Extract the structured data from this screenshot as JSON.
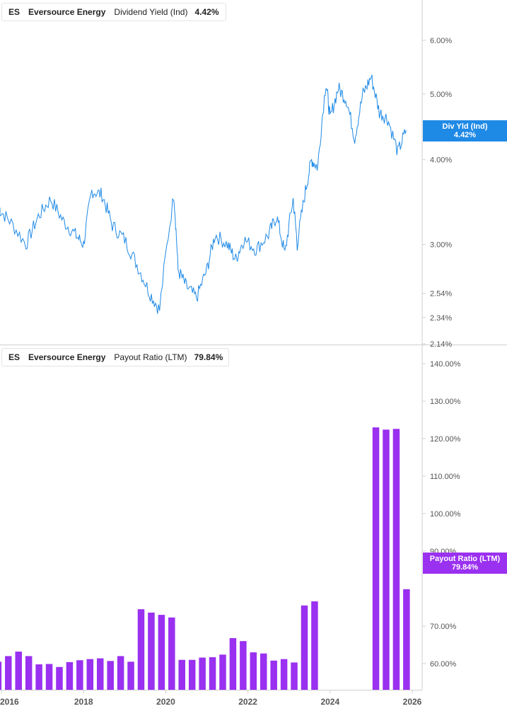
{
  "top_legend": {
    "ticker": "ES",
    "company": "Eversource Energy",
    "metric": "Dividend Yield (Ind)",
    "value": "4.42%",
    "color": "#1f8ae6"
  },
  "bottom_legend": {
    "ticker": "ES",
    "company": "Eversource Energy",
    "metric": "Payout Ratio (LTM)",
    "value": "79.84%",
    "color": "#9a30f0"
  },
  "top_badge": {
    "label": "Div Yld (Ind)",
    "value": "4.42%",
    "color": "#1f8ae6"
  },
  "bottom_badge": {
    "label": "Payout Ratio (LTM)",
    "value": "79.84%",
    "color": "#9a30f0"
  },
  "chart_data": [
    {
      "type": "line",
      "scale": "log",
      "series": [
        {
          "values": [
            3.4,
            3.25,
            3.0,
            3.3,
            3.5,
            3.25,
            3.1,
            3.0,
            3.6,
            3.55,
            3.2,
            3.05,
            2.8,
            2.55,
            2.4,
            3.55,
            2.75,
            2.6,
            2.5,
            2.75,
            3.1,
            3.0,
            2.85,
            3.05,
            2.95,
            3.1,
            3.3,
            2.9,
            3.5,
            3.0,
            3.6,
            4.0,
            3.9,
            5.2,
            4.6,
            5.1,
            4.9,
            4.3,
            5.0,
            5.3,
            4.7,
            4.6,
            4.1,
            4.42
          ]
        }
      ],
      "x": [
        "2015.9",
        "2016.2",
        "2016.6",
        "2016.9",
        "2017.2",
        "2017.5",
        "2017.8",
        "2018.0",
        "2018.2",
        "2018.45",
        "2018.7",
        "2019.0",
        "2019.3",
        "2019.6",
        "2019.85",
        "2020.2",
        "2020.3",
        "2020.5",
        "2020.75",
        "2021.0",
        "2021.2",
        "2021.5",
        "2021.7",
        "2021.9",
        "2022.2",
        "2022.5",
        "2022.7",
        "2022.9",
        "2023.1",
        "2023.2",
        "2023.4",
        "2023.55",
        "2023.7",
        "2023.9",
        "2024.0",
        "2024.2",
        "2024.4",
        "2024.6",
        "2024.8",
        "2025.0",
        "2025.2",
        "2025.4",
        "2025.65",
        "2025.85"
      ],
      "yticks": [
        "6.00%",
        "5.00%",
        "4.00%",
        "3.00%",
        "2.54%",
        "2.34%",
        "2.14%"
      ],
      "ylim": [
        2.14,
        6.6
      ]
    },
    {
      "type": "bar",
      "series": [
        {
          "values": [
            60.5,
            62.0,
            63.2,
            62.0,
            59.8,
            59.9,
            59.1,
            60.4,
            60.9,
            61.2,
            61.4,
            60.7,
            62.0,
            60.5,
            74.5,
            73.6,
            73.0,
            72.3,
            61.0,
            61.0,
            61.6,
            61.7,
            62.4,
            66.8,
            66.0,
            63.0,
            62.7,
            60.8,
            61.2,
            60.3,
            75.5,
            76.6,
            null,
            null,
            null,
            null,
            null,
            123.0,
            122.4,
            122.6,
            79.84
          ]
        }
      ],
      "yticks": [
        "140.00%",
        "130.00%",
        "120.00%",
        "110.00%",
        "100.00%",
        "90.00%",
        "70.00%",
        "60.00%"
      ],
      "ylim": [
        55,
        145
      ]
    }
  ],
  "x_axis": {
    "ticks": [
      "2016",
      "2018",
      "2020",
      "2022",
      "2024",
      "2026"
    ]
  }
}
